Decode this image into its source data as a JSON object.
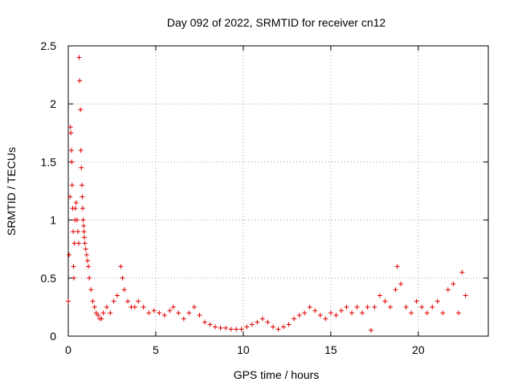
{
  "chart_data": {
    "type": "scatter",
    "title": "Day 092 of 2022, SRMTID for receiver cn12",
    "xlabel": "GPS time / hours",
    "ylabel": "SRMTID / TECUs",
    "xlim": [
      0,
      24
    ],
    "ylim": [
      0,
      2.5
    ],
    "xticks": [
      0,
      5,
      10,
      15,
      20
    ],
    "xtick_labels": [
      "0",
      "5",
      "10",
      "15",
      "20"
    ],
    "yticks": [
      0,
      0.5,
      1,
      1.5,
      2,
      2.5
    ],
    "ytick_labels": [
      "0",
      "0.5",
      "1",
      "1.5",
      "2",
      "2.5"
    ],
    "grid": true,
    "marker": "+",
    "color": "#e00000",
    "series": [
      {
        "name": "cn12",
        "x": [
          0.0,
          0.05,
          0.1,
          0.12,
          0.15,
          0.18,
          0.2,
          0.22,
          0.25,
          0.28,
          0.3,
          0.32,
          0.35,
          0.38,
          0.4,
          0.45,
          0.5,
          0.55,
          0.6,
          0.62,
          0.65,
          0.7,
          0.72,
          0.75,
          0.78,
          0.8,
          0.82,
          0.85,
          0.88,
          0.9,
          0.92,
          0.95,
          1.0,
          1.05,
          1.1,
          1.15,
          1.2,
          1.3,
          1.4,
          1.5,
          1.6,
          1.7,
          1.8,
          1.9,
          2.0,
          2.2,
          2.4,
          2.6,
          2.8,
          3.0,
          3.1,
          3.2,
          3.4,
          3.6,
          3.8,
          4.0,
          4.3,
          4.6,
          4.9,
          5.2,
          5.5,
          5.8,
          6.0,
          6.3,
          6.6,
          6.9,
          7.2,
          7.5,
          7.8,
          8.1,
          8.4,
          8.7,
          9.0,
          9.3,
          9.6,
          9.9,
          10.2,
          10.5,
          10.8,
          11.1,
          11.4,
          11.7,
          12.0,
          12.3,
          12.6,
          12.9,
          13.2,
          13.5,
          13.8,
          14.1,
          14.4,
          14.7,
          15.0,
          15.3,
          15.6,
          15.9,
          16.2,
          16.5,
          16.8,
          17.1,
          17.3,
          17.5,
          17.8,
          18.1,
          18.4,
          18.7,
          18.8,
          19.0,
          19.3,
          19.6,
          19.9,
          20.2,
          20.5,
          20.8,
          21.1,
          21.4,
          21.7,
          22.0,
          22.3,
          22.5,
          22.7
        ],
        "y": [
          0.3,
          0.7,
          1.2,
          1.8,
          1.75,
          1.6,
          1.5,
          1.3,
          1.1,
          0.9,
          0.6,
          0.5,
          0.8,
          1.0,
          1.1,
          1.15,
          1.0,
          0.9,
          0.8,
          2.4,
          2.2,
          1.95,
          1.6,
          1.45,
          1.3,
          1.2,
          1.1,
          1.0,
          0.95,
          0.9,
          0.85,
          0.8,
          0.75,
          0.7,
          0.65,
          0.6,
          0.5,
          0.4,
          0.3,
          0.25,
          0.2,
          0.18,
          0.15,
          0.15,
          0.2,
          0.25,
          0.2,
          0.3,
          0.35,
          0.6,
          0.5,
          0.4,
          0.3,
          0.25,
          0.25,
          0.3,
          0.25,
          0.2,
          0.22,
          0.2,
          0.18,
          0.22,
          0.25,
          0.2,
          0.15,
          0.2,
          0.25,
          0.18,
          0.12,
          0.1,
          0.08,
          0.07,
          0.07,
          0.06,
          0.06,
          0.06,
          0.08,
          0.1,
          0.12,
          0.15,
          0.12,
          0.08,
          0.06,
          0.08,
          0.1,
          0.15,
          0.18,
          0.2,
          0.25,
          0.22,
          0.18,
          0.15,
          0.2,
          0.18,
          0.22,
          0.25,
          0.2,
          0.25,
          0.2,
          0.25,
          0.05,
          0.25,
          0.35,
          0.3,
          0.25,
          0.4,
          0.6,
          0.45,
          0.25,
          0.2,
          0.3,
          0.25,
          0.2,
          0.25,
          0.3,
          0.2,
          0.4,
          0.45,
          0.2,
          0.55,
          0.35
        ]
      }
    ]
  }
}
